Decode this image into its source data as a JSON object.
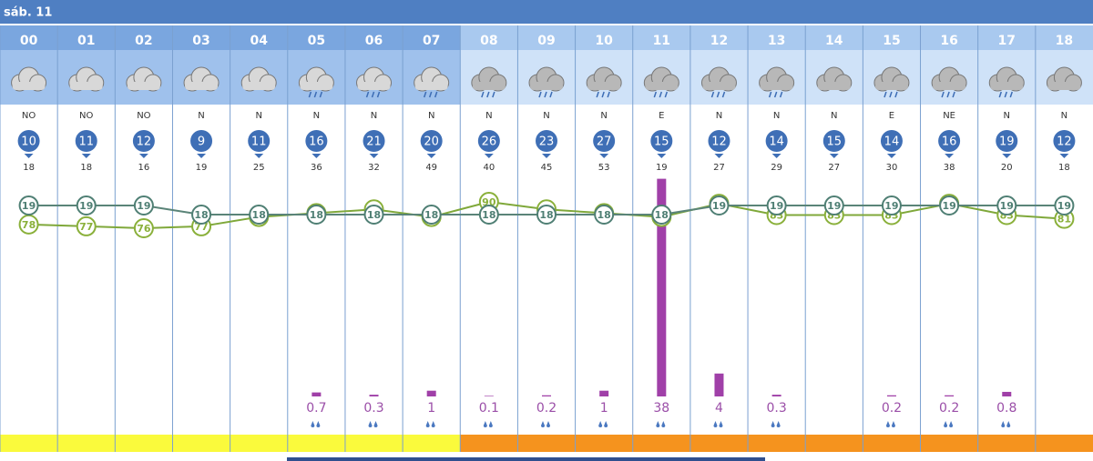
{
  "header": {
    "day": "sáb. 11"
  },
  "hours": [
    {
      "hour": "00",
      "wind_dir": "NO",
      "wind_speed": 10,
      "gust": 18,
      "temp": 19,
      "humidity": 78,
      "precip": null
    },
    {
      "hour": "01",
      "wind_dir": "NO",
      "wind_speed": 11,
      "gust": 18,
      "temp": 19,
      "humidity": 77,
      "precip": null
    },
    {
      "hour": "02",
      "wind_dir": "NO",
      "wind_speed": 12,
      "gust": 16,
      "temp": 19,
      "humidity": 76,
      "precip": null
    },
    {
      "hour": "03",
      "wind_dir": "N",
      "wind_speed": 9,
      "gust": 19,
      "temp": 18,
      "humidity": 77,
      "precip": null
    },
    {
      "hour": "04",
      "wind_dir": "N",
      "wind_speed": 11,
      "gust": 25,
      "temp": 18,
      "humidity": 82,
      "precip": null
    },
    {
      "hour": "05",
      "wind_dir": "N",
      "wind_speed": 16,
      "gust": 36,
      "temp": 18,
      "humidity": 84,
      "precip": 0.7
    },
    {
      "hour": "06",
      "wind_dir": "N",
      "wind_speed": 21,
      "gust": 32,
      "temp": 18,
      "humidity": 86,
      "precip": 0.3
    },
    {
      "hour": "07",
      "wind_dir": "N",
      "wind_speed": 20,
      "gust": 49,
      "temp": 18,
      "humidity": 82,
      "precip": 1
    },
    {
      "hour": "08",
      "wind_dir": "N",
      "wind_speed": 26,
      "gust": 40,
      "temp": 18,
      "humidity": 90,
      "precip": 0.1
    },
    {
      "hour": "09",
      "wind_dir": "N",
      "wind_speed": 23,
      "gust": 45,
      "temp": 18,
      "humidity": 86,
      "precip": 0.2
    },
    {
      "hour": "10",
      "wind_dir": "N",
      "wind_speed": 27,
      "gust": 53,
      "temp": 18,
      "humidity": 84,
      "precip": 1
    },
    {
      "hour": "11",
      "wind_dir": "E",
      "wind_speed": 15,
      "gust": 19,
      "temp": 18,
      "humidity": 82,
      "precip": 38
    },
    {
      "hour": "12",
      "wind_dir": "N",
      "wind_speed": 12,
      "gust": 27,
      "temp": 19,
      "humidity": 89,
      "precip": 4
    },
    {
      "hour": "13",
      "wind_dir": "N",
      "wind_speed": 14,
      "gust": 29,
      "temp": 19,
      "humidity": 83,
      "precip": 0.3
    },
    {
      "hour": "14",
      "wind_dir": "N",
      "wind_speed": 15,
      "gust": 27,
      "temp": 19,
      "humidity": 83,
      "precip": null
    },
    {
      "hour": "15",
      "wind_dir": "E",
      "wind_speed": 14,
      "gust": 30,
      "temp": 19,
      "humidity": 83,
      "precip": 0.2
    },
    {
      "hour": "16",
      "wind_dir": "NE",
      "wind_speed": 16,
      "gust": 38,
      "temp": 19,
      "humidity": 89,
      "precip": 0.2
    },
    {
      "hour": "17",
      "wind_dir": "N",
      "wind_speed": 19,
      "gust": 20,
      "temp": 19,
      "humidity": 83,
      "precip": 0.8
    },
    {
      "hour": "18",
      "wind_dir": "N",
      "wind_speed": 12,
      "gust": 18,
      "temp": 19,
      "humidity": 81,
      "precip": null
    }
  ]
}
